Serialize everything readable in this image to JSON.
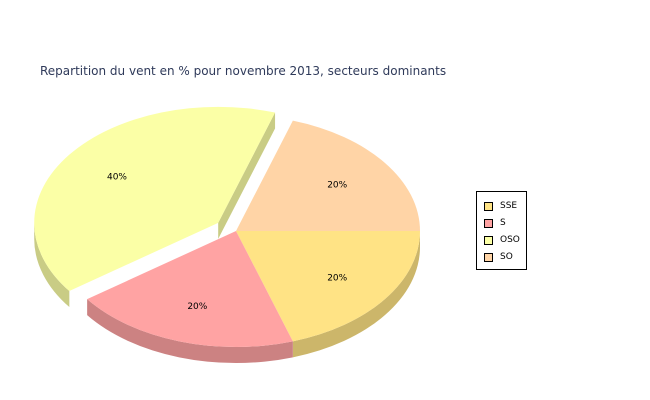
{
  "chart_data": {
    "type": "pie",
    "title": "Repartition du vent en % pour novembre 2013, secteurs dominants",
    "categories": [
      "SSE",
      "S",
      "OSO",
      "SO"
    ],
    "values": [
      20,
      20,
      40,
      20
    ],
    "labels": [
      "20%",
      "20%",
      "40%",
      "20%"
    ],
    "colors": [
      "#ffe385",
      "#ffa3a3",
      "#fbffa6",
      "#ffd4a6"
    ],
    "exploded": [
      false,
      false,
      true,
      false
    ],
    "style": "3d",
    "legend_position": "right"
  }
}
